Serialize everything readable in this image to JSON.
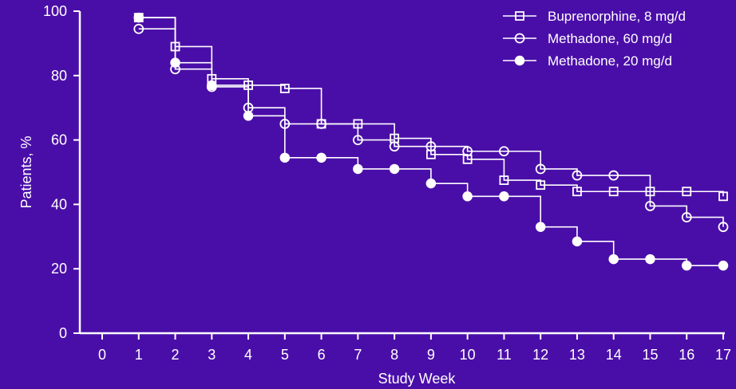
{
  "chart_data": {
    "type": "line",
    "step": true,
    "title": "",
    "xlabel": "Study Week",
    "ylabel": "Patients, %",
    "xlim": [
      0,
      17
    ],
    "ylim": [
      0,
      100
    ],
    "x_ticks": [
      0,
      1,
      2,
      3,
      4,
      5,
      6,
      7,
      8,
      9,
      10,
      11,
      12,
      13,
      14,
      15,
      16,
      17
    ],
    "x_tick_labels": [
      "0",
      "1",
      "2",
      "3",
      "4",
      "5",
      "6",
      "7",
      "8",
      "9",
      "10",
      "11",
      "12",
      "13",
      "14",
      "15",
      "16",
      "17"
    ],
    "y_ticks": [
      0,
      20,
      40,
      60,
      80,
      100
    ],
    "y_tick_labels": [
      "0",
      "20",
      "40",
      "60",
      "80",
      "100"
    ],
    "legend_position": "top-right",
    "grid": false,
    "axis_color": "#ffffff",
    "background_color": "#4a0ea8",
    "x": [
      1,
      2,
      3,
      4,
      5,
      6,
      7,
      8,
      9,
      10,
      11,
      12,
      13,
      14,
      15,
      16,
      17
    ],
    "series": [
      {
        "name": "Buprenorphine, 8 mg/d",
        "marker": "square",
        "values": [
          98,
          89,
          79,
          77,
          76,
          65,
          65,
          60.5,
          55.5,
          54,
          47.5,
          46,
          44,
          44,
          44,
          44,
          42.5
        ]
      },
      {
        "name": "Methadone, 60 mg/d",
        "marker": "circle-open",
        "values": [
          94.5,
          82,
          76.5,
          70,
          65,
          65,
          60,
          58,
          58,
          56.5,
          56.5,
          51,
          49,
          49,
          39.5,
          36,
          33
        ]
      },
      {
        "name": "Methadone, 20 mg/d",
        "marker": "circle-filled",
        "values": [
          98,
          84,
          77,
          67.5,
          54.5,
          54.5,
          51,
          51,
          46.5,
          42.5,
          42.5,
          33,
          28.5,
          23,
          23,
          21,
          21
        ]
      }
    ]
  }
}
